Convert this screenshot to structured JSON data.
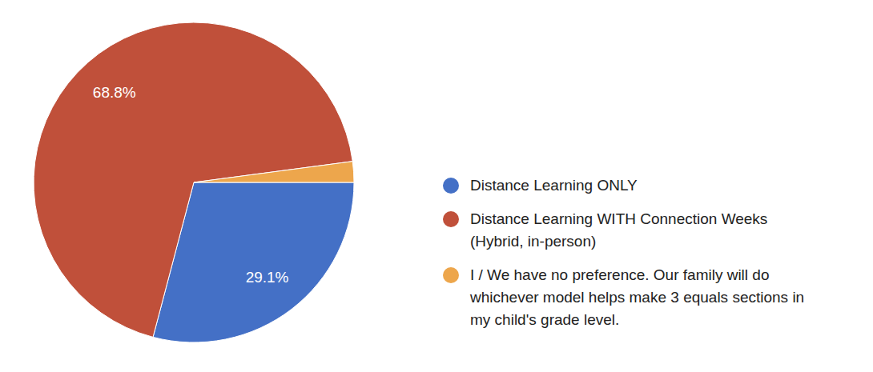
{
  "chart_data": {
    "type": "pie",
    "categories": [
      "Distance Learning ONLY",
      "Distance Learning WITH Connection Weeks (Hybrid, in-person)",
      "I / We have no preference. Our family will do whichever model helps make 3 equals sections in my child's grade level."
    ],
    "values": [
      29.1,
      68.8,
      2.1
    ],
    "value_labels": [
      "29.1%",
      "68.8%",
      null
    ],
    "colors": [
      "#4470c6",
      "#c0503a",
      "#eda64c"
    ],
    "data_labels": true,
    "legend": "right"
  }
}
